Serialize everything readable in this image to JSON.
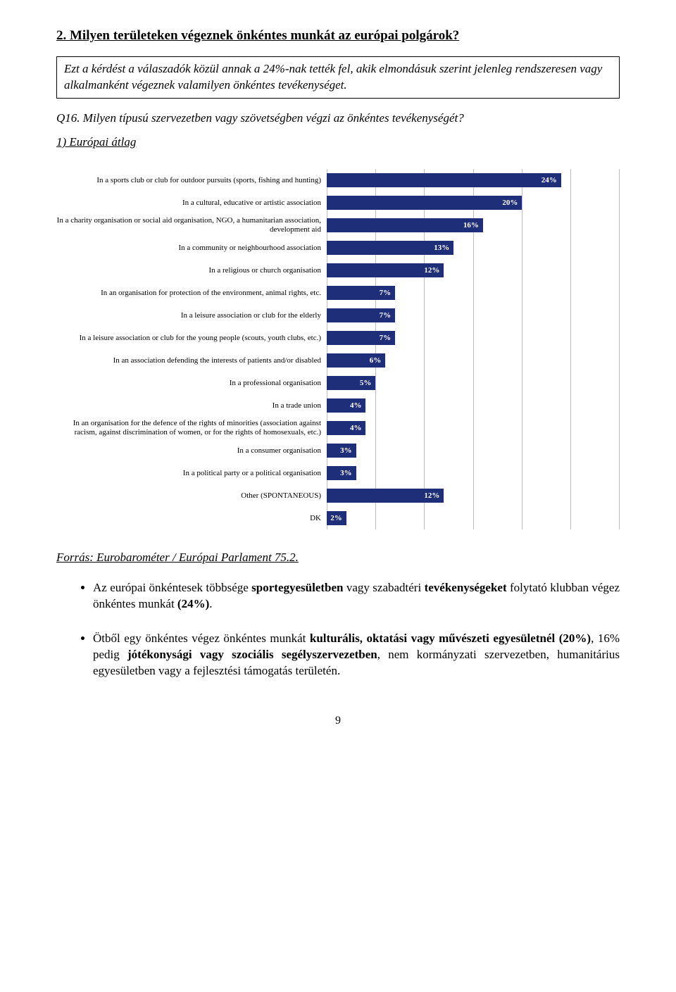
{
  "heading": "2. Milyen területeken végeznek önkéntes munkát az európai polgárok?",
  "boxed_text": "Ezt a kérdést a válaszadók közül annak a 24%-nak tették fel, akik elmondásuk szerint jelenleg rendszeresen vagy alkalmanként végeznek valamilyen önkéntes tevékenységet.",
  "q_line": "Q16.   Milyen típusú szervezetben vagy szövetségben végzi az önkéntes tevékenységét?",
  "sub_heading": "1) Európai átlag",
  "chart": {
    "type": "bar",
    "bar_color": "#1f2e79",
    "grid_color": "#bfbfbf",
    "background_color": "#ffffff",
    "label_fontsize": 11,
    "value_fontsize": 11,
    "xmax": 30,
    "grid_divisions": 6,
    "items": [
      {
        "label": "In a sports club or club for outdoor pursuits (sports, fishing and hunting)",
        "value": 24,
        "text": "24%"
      },
      {
        "label": "In a cultural, educative or artistic association",
        "value": 20,
        "text": "20%"
      },
      {
        "label": "In a charity organisation or social aid organisation, NGO, a humanitarian association, development aid",
        "value": 16,
        "text": "16%"
      },
      {
        "label": "In a community or neighbourhood association",
        "value": 13,
        "text": "13%"
      },
      {
        "label": "In a religious or church organisation",
        "value": 12,
        "text": "12%"
      },
      {
        "label": "In an organisation for protection of the environment, animal rights, etc.",
        "value": 7,
        "text": "7%"
      },
      {
        "label": "In a leisure association or club for the elderly",
        "value": 7,
        "text": "7%"
      },
      {
        "label": "In a leisure association or club for the young people (scouts, youth clubs, etc.)",
        "value": 7,
        "text": "7%"
      },
      {
        "label": "In an association defending the interests of patients and/or disabled",
        "value": 6,
        "text": "6%"
      },
      {
        "label": "In a professional organisation",
        "value": 5,
        "text": "5%"
      },
      {
        "label": "In a trade union",
        "value": 4,
        "text": "4%"
      },
      {
        "label": "In an organisation for the defence of the rights of minorities (association against racism, against discrimination of women, or for the rights of homosexuals, etc.)",
        "value": 4,
        "text": "4%"
      },
      {
        "label": "In a consumer organisation",
        "value": 3,
        "text": "3%"
      },
      {
        "label": "In a political party or a political organisation",
        "value": 3,
        "text": "3%"
      },
      {
        "label": "Other (SPONTANEOUS)",
        "value": 12,
        "text": "12%"
      },
      {
        "label": "DK",
        "value": 2,
        "text": "2%"
      }
    ]
  },
  "source": "Forrás: Eurobarométer / Európai Parlament 75.2.",
  "bullets": [
    "Az európai önkéntesek többsége <b>sportegyesületben</b> vagy szabadtéri <b>tevékenységeket</b> folytató klubban végez önkéntes munkát <b>(24%)</b>.",
    "Ötből egy önkéntes végez önkéntes munkát <b>kulturális, oktatási vagy művészeti egyesületnél (20%)</b>, 16% pedig <b>jótékonysági vagy szociális segélyszervezetben</b>, nem kormányzati szervezetben, humanitárius egyesületben vagy a fejlesztési támogatás területén."
  ],
  "page_number": "9"
}
